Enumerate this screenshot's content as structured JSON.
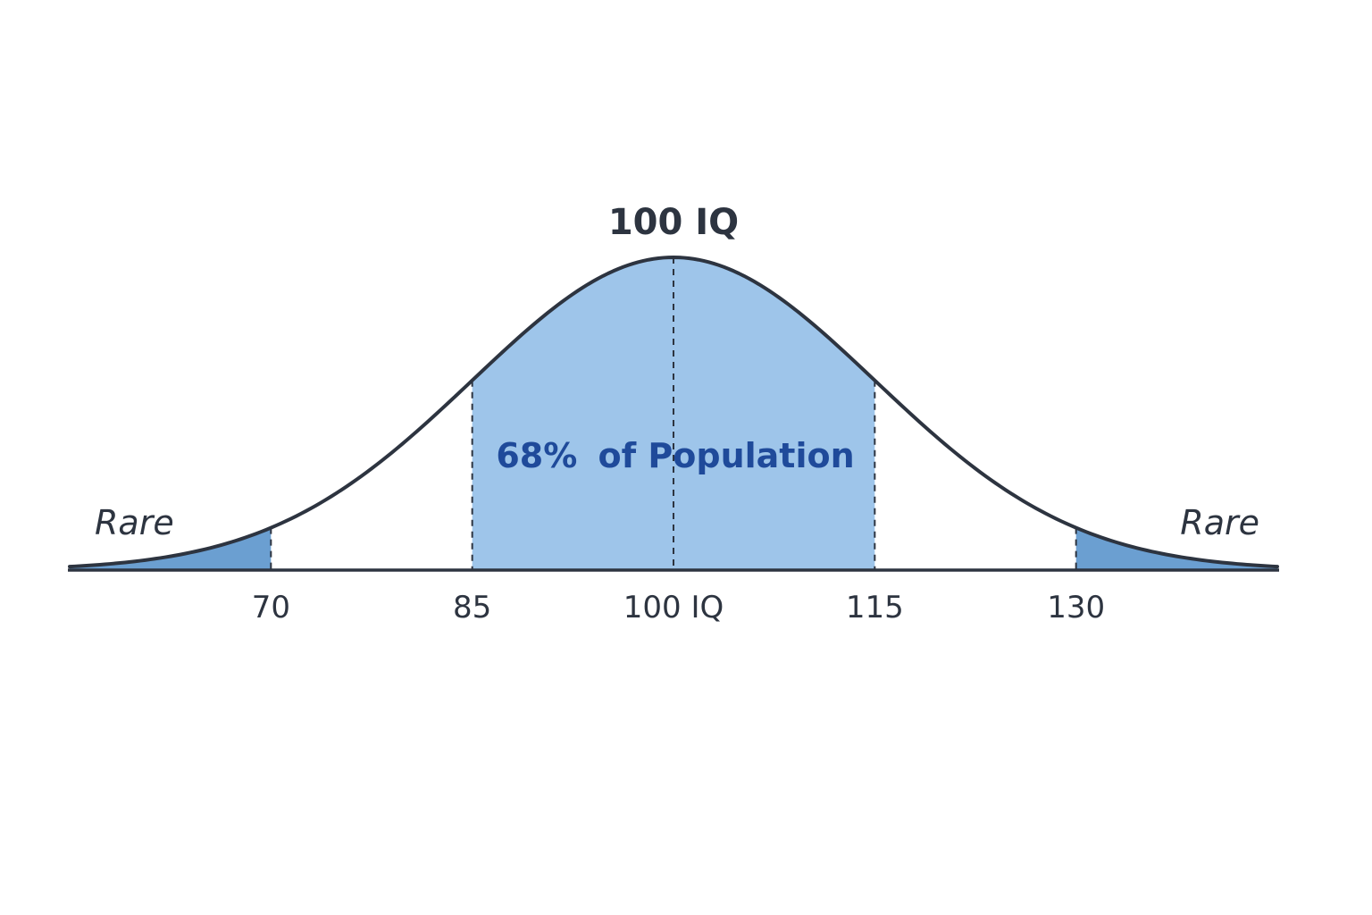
{
  "chart_data": {
    "type": "area",
    "distribution": "normal",
    "mean": 100,
    "sd": 15,
    "xlim": [
      55,
      145
    ],
    "peak_label": "100 IQ",
    "band": {
      "from": 85,
      "to": 115,
      "percent": "68%",
      "text": "of Population"
    },
    "tails": [
      {
        "side": "left",
        "below": 70,
        "label": "Rare"
      },
      {
        "side": "right",
        "above": 130,
        "label": "Rare"
      }
    ],
    "ticks": [
      {
        "value": 70,
        "label": "70"
      },
      {
        "value": 85,
        "label": "85"
      },
      {
        "value": 100,
        "label": "100 IQ"
      },
      {
        "value": 115,
        "label": "115"
      },
      {
        "value": 130,
        "label": "130"
      }
    ],
    "colors": {
      "curve": "#2d3440",
      "band_fill": "#9ec5ea",
      "tail_fill": "#6b9fd1",
      "band_text": "#1f4a9a",
      "text": "#2d3440"
    }
  }
}
